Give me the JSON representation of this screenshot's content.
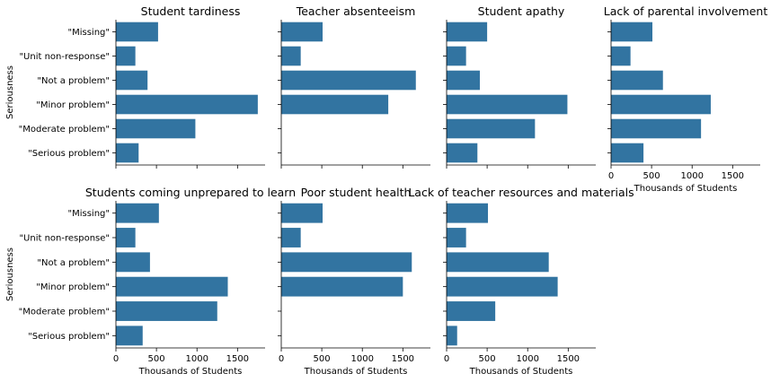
{
  "chart_data": {
    "type": "bar",
    "orientation": "horizontal",
    "bar_color": "#3274a1",
    "ylabel": "Seriousness",
    "xlabel": "Thousands of Students",
    "categories": [
      "\"Missing\"",
      "\"Unit non-response\"",
      "\"Not a problem\"",
      "\"Minor problem\"",
      "\"Moderate problem\"",
      "\"Serious problem\""
    ],
    "xlim": [
      0,
      1840
    ],
    "xticks": [
      0,
      500,
      1000,
      1500
    ],
    "xtick_labels": [
      "0",
      "500",
      "1000",
      "1500"
    ],
    "panels": [
      {
        "title": "Student tardiness",
        "values": [
          520,
          240,
          390,
          1750,
          980,
          280
        ]
      },
      {
        "title": "Teacher absenteeism",
        "values": [
          510,
          240,
          1660,
          1320,
          0,
          0
        ]
      },
      {
        "title": "Student apathy",
        "values": [
          500,
          240,
          410,
          1490,
          1090,
          380
        ]
      },
      {
        "title": "Lack of parental involvement",
        "values": [
          510,
          240,
          640,
          1230,
          1110,
          400
        ]
      },
      {
        "title": "Students coming unprepared to learn",
        "values": [
          530,
          240,
          420,
          1380,
          1250,
          330
        ]
      },
      {
        "title": "Poor student health",
        "values": [
          510,
          240,
          1610,
          1500,
          0,
          0
        ]
      },
      {
        "title": "Lack of teacher resources and materials",
        "values": [
          510,
          240,
          1260,
          1370,
          600,
          130
        ]
      }
    ]
  }
}
